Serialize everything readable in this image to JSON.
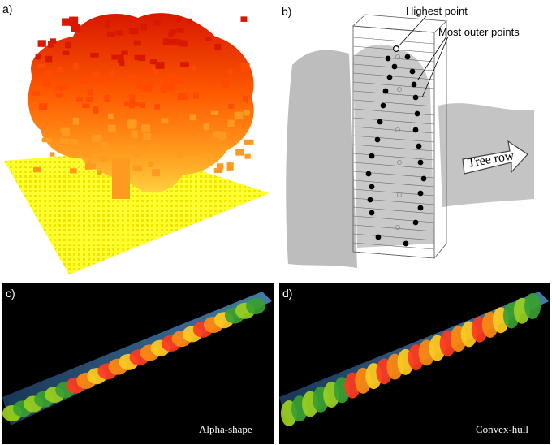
{
  "panels": {
    "a": {
      "label": "a)"
    },
    "b": {
      "label": "b)",
      "highest_point": "Highest point",
      "most_outer_points": "Most outer points",
      "tree_row": "Tree row"
    },
    "c": {
      "label": "c)",
      "caption": "Alpha-shape"
    },
    "d": {
      "label": "d)",
      "caption": "Convex-hull"
    }
  },
  "colors": {
    "ground": "#ffff00",
    "canopy_top": "#e02000",
    "canopy_mid": "#ff8800",
    "gray_cloud": "#bdbdbd",
    "panel_bg_dark": "#000000"
  }
}
